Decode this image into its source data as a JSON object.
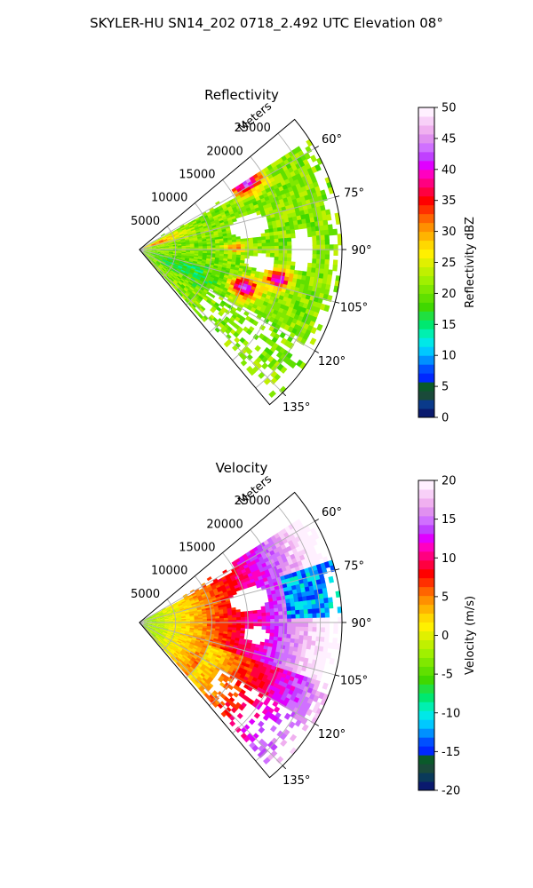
{
  "figure": {
    "title": "SKYLER-HU  SN14_202  0718_2.492 UTC Elevation 08°"
  },
  "chart_data": [
    {
      "type": "heatmap",
      "subtype": "polar-sector",
      "title": "Reflectivity",
      "range_label": "Meters",
      "range_ticks": [
        "5000",
        "10000",
        "15000",
        "20000",
        "25000"
      ],
      "range_max": 28000,
      "angle_ticks": [
        "60°",
        "75°",
        "90°",
        "105°",
        "120°",
        "135°"
      ],
      "angle_range": [
        50,
        140
      ],
      "grid": true,
      "colorbar": {
        "label": "Reflectivity dBZ",
        "min": 0,
        "max": 50,
        "ticks": [
          "0",
          "5",
          "10",
          "15",
          "20",
          "25",
          "30",
          "35",
          "40",
          "45",
          "50"
        ],
        "colors": [
          "#0a1a6e",
          "#0a3a8a",
          "#1a4a3a",
          "#0a5a2a",
          "#0028ff",
          "#0050ff",
          "#0090ff",
          "#00c8ff",
          "#00e8e8",
          "#00f0b0",
          "#00e870",
          "#20e040",
          "#40d800",
          "#60e000",
          "#80e800",
          "#a0f000",
          "#c0f000",
          "#e0f000",
          "#fff000",
          "#ffd800",
          "#ffb400",
          "#ff9000",
          "#ff6400",
          "#ff3000",
          "#ff0000",
          "#ff0040",
          "#ff0080",
          "#ff00c0",
          "#e000ff",
          "#c040ff",
          "#d070ff",
          "#e090f0",
          "#f0b0f0",
          "#f8d0f8",
          "#fff0ff"
        ]
      }
    },
    {
      "type": "heatmap",
      "subtype": "polar-sector",
      "title": "Velocity",
      "range_label": "Meters",
      "range_ticks": [
        "5000",
        "10000",
        "15000",
        "20000",
        "25000"
      ],
      "range_max": 28000,
      "angle_ticks": [
        "60°",
        "75°",
        "90°",
        "105°",
        "120°",
        "135°"
      ],
      "angle_range": [
        50,
        140
      ],
      "grid": true,
      "colorbar": {
        "label": "Velocity (m/s)",
        "min": -20,
        "max": 20,
        "ticks": [
          "-20",
          "-15",
          "-10",
          "-5",
          "0",
          "5",
          "10",
          "15",
          "20"
        ],
        "colors": [
          "#0a1a6e",
          "#0a3a5a",
          "#1a4a3a",
          "#0a5a2a",
          "#0028ff",
          "#0050ff",
          "#0090ff",
          "#00c8ff",
          "#00e8e8",
          "#00f0b0",
          "#00e870",
          "#20e040",
          "#40d800",
          "#60e000",
          "#80e800",
          "#a0f000",
          "#c0f000",
          "#e0f000",
          "#fff000",
          "#ffd800",
          "#ffb400",
          "#ff9000",
          "#ff6400",
          "#ff3000",
          "#ff0000",
          "#ff0040",
          "#ff0080",
          "#ff00c0",
          "#e000ff",
          "#c040ff",
          "#d070ff",
          "#e090f0",
          "#f0b0f0",
          "#f8d0f8",
          "#fff0ff"
        ]
      }
    }
  ]
}
